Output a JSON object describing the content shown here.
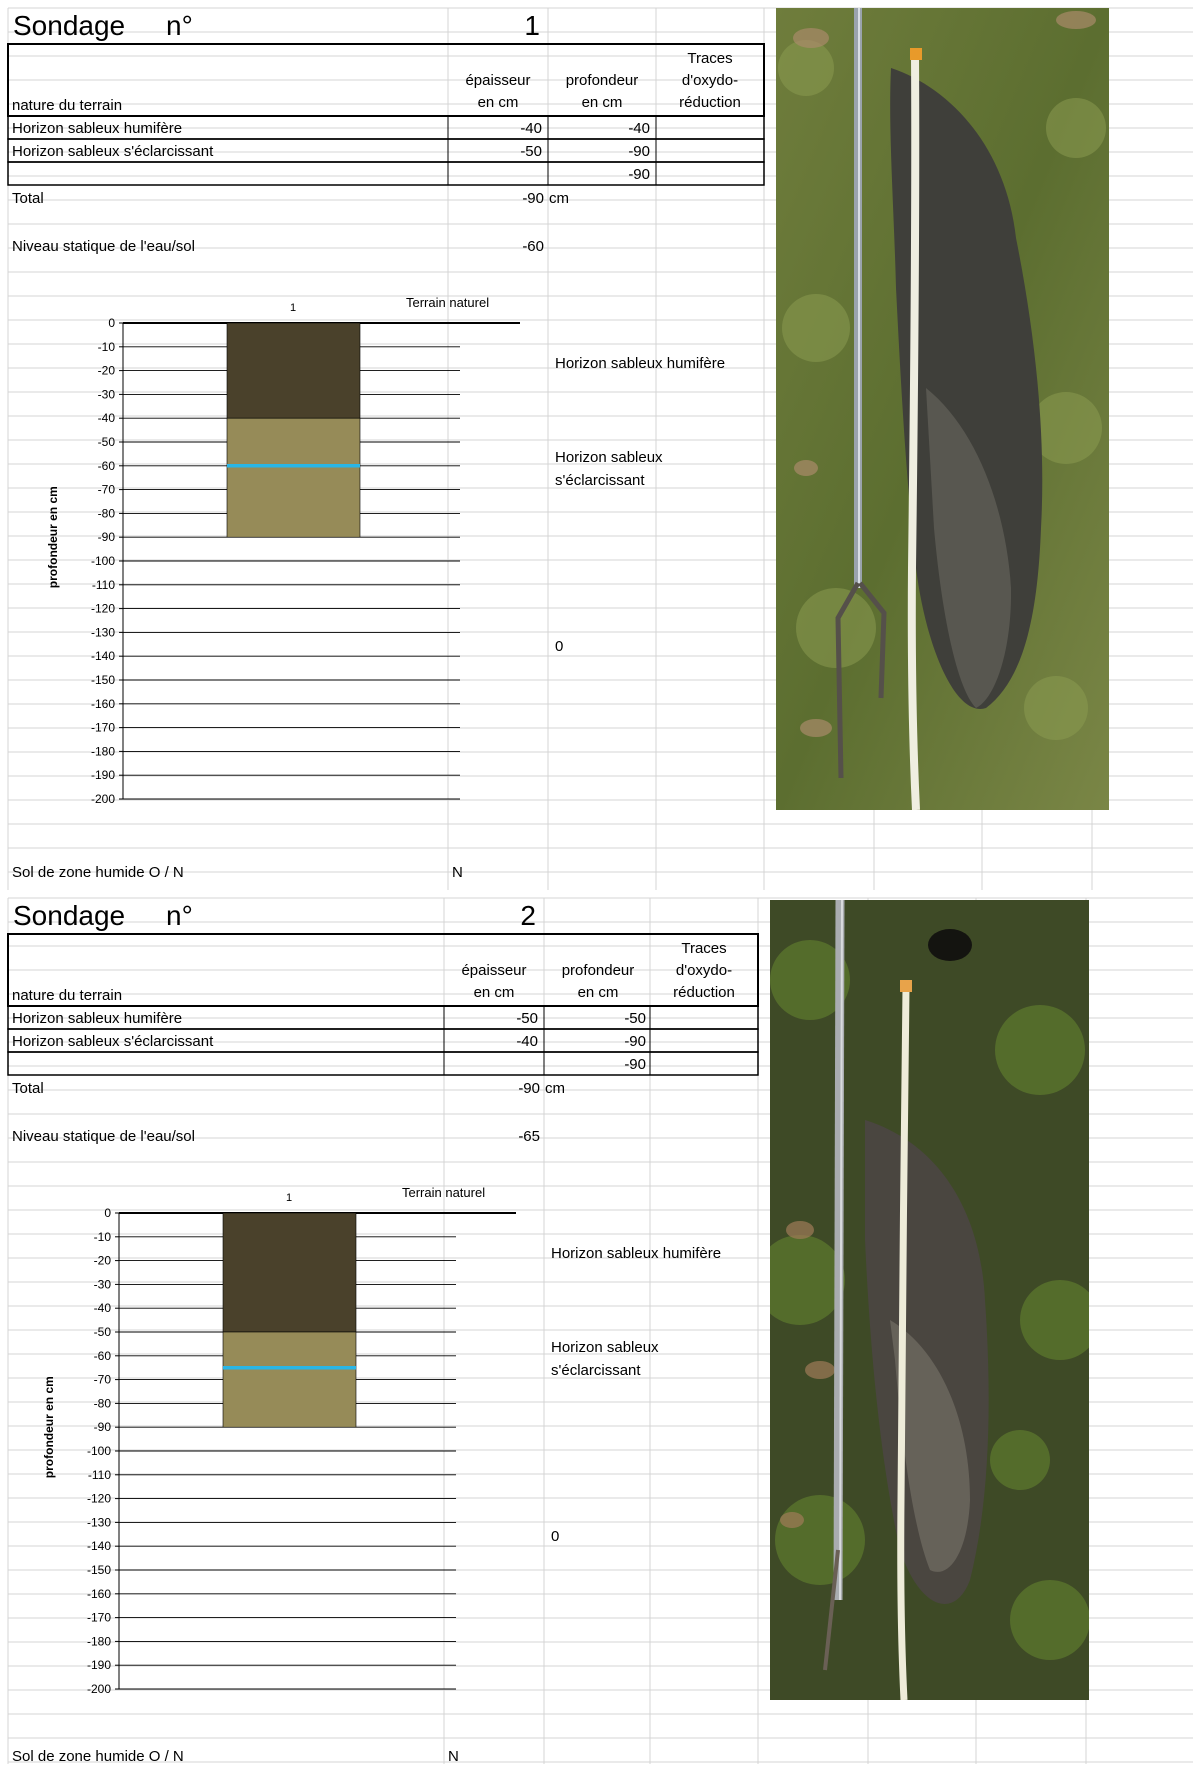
{
  "sondages": [
    {
      "sondage_label": "Sondage",
      "num_label": "n°",
      "number": "1",
      "headers": {
        "nature": "nature du terrain",
        "epaisseur": [
          "épaisseur",
          "en cm"
        ],
        "profondeur": [
          "profondeur",
          "en cm"
        ],
        "traces": [
          "Traces",
          "d'oxydo-",
          "réduction"
        ]
      },
      "rows": [
        {
          "nature": "Horizon sableux humifère",
          "epaisseur": "-40",
          "profondeur": "-40",
          "traces": ""
        },
        {
          "nature": "Horizon sableux s'éclarcissant",
          "epaisseur": "-50",
          "profondeur": "-90",
          "traces": ""
        },
        {
          "nature": "",
          "epaisseur": "",
          "profondeur": "-90",
          "traces": ""
        }
      ],
      "total_label": "Total",
      "total_value": "-90",
      "total_unit": "cm",
      "niveau_label": "Niveau statique de l'eau/sol",
      "niveau_value": "-60",
      "chart_data": {
        "type": "bar",
        "categories": [
          "1"
        ],
        "layers": [
          {
            "name": "Horizon sableux humifère",
            "top": 0,
            "bottom": -40,
            "color": "#4a412b"
          },
          {
            "name": "Horizon sableux s'éclarcissant",
            "top": -40,
            "bottom": -90,
            "color": "#968b58"
          }
        ],
        "water_level": -60,
        "water_color": "#29b6e6",
        "ylabel": "profondeur en cm",
        "surface_label": "Terrain naturel",
        "ylim": [
          -200,
          0
        ],
        "yticks": [
          0,
          -10,
          -20,
          -30,
          -40,
          -50,
          -60,
          -70,
          -80,
          -90,
          -100,
          -110,
          -120,
          -130,
          -140,
          -150,
          -160,
          -170,
          -180,
          -190,
          -200
        ],
        "legend": [
          "Horizon sableux humifère",
          "Horizon sableux s'éclarcissant",
          "0"
        ]
      },
      "zone_humide_label": "Sol de zone humide O / N",
      "zone_humide_value": "N"
    },
    {
      "sondage_label": "Sondage",
      "num_label": "n°",
      "number": "2",
      "headers": {
        "nature": "nature du terrain",
        "epaisseur": [
          "épaisseur",
          "en cm"
        ],
        "profondeur": [
          "profondeur",
          "en cm"
        ],
        "traces": [
          "Traces",
          "d'oxydo-",
          "réduction"
        ]
      },
      "rows": [
        {
          "nature": "Horizon sableux humifère",
          "epaisseur": "-50",
          "profondeur": "-50",
          "traces": ""
        },
        {
          "nature": "Horizon sableux s'éclarcissant",
          "epaisseur": "-40",
          "profondeur": "-90",
          "traces": ""
        },
        {
          "nature": "",
          "epaisseur": "",
          "profondeur": "-90",
          "traces": ""
        }
      ],
      "total_label": "Total",
      "total_value": "-90",
      "total_unit": "cm",
      "niveau_label": "Niveau statique de l'eau/sol",
      "niveau_value": "-65",
      "chart_data": {
        "type": "bar",
        "categories": [
          "1"
        ],
        "layers": [
          {
            "name": "Horizon sableux humifère",
            "top": 0,
            "bottom": -50,
            "color": "#4a412b"
          },
          {
            "name": "Horizon sableux s'éclarcissant",
            "top": -50,
            "bottom": -90,
            "color": "#968b58"
          }
        ],
        "water_level": -65,
        "water_color": "#29b6e6",
        "ylabel": "profondeur en cm",
        "surface_label": "Terrain naturel",
        "ylim": [
          -200,
          0
        ],
        "yticks": [
          0,
          -10,
          -20,
          -30,
          -40,
          -50,
          -60,
          -70,
          -80,
          -90,
          -100,
          -110,
          -120,
          -130,
          -140,
          -150,
          -160,
          -170,
          -180,
          -190,
          -200
        ],
        "legend": [
          "Horizon sableux humifère",
          "Horizon sableux s'éclarcissant",
          "0"
        ]
      },
      "zone_humide_label": "Sol de zone humide O / N",
      "zone_humide_value": "N"
    }
  ]
}
